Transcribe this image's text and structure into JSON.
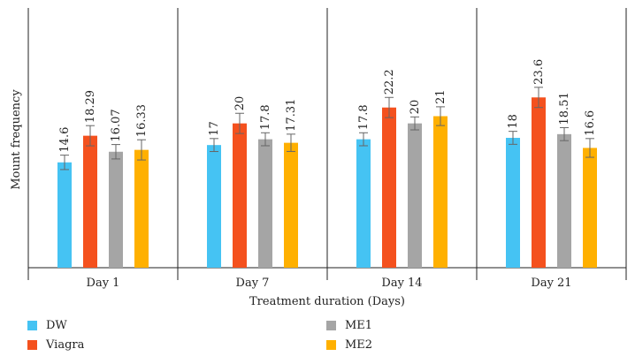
{
  "chart_data": {
    "type": "bar",
    "title": "",
    "xlabel": "Treatment duration (Days)",
    "ylabel": "Mount frequency",
    "ylim": [
      0,
      36
    ],
    "grid": false,
    "legend_position": "bottom",
    "categories": [
      "Day 1",
      "Day 7",
      "Day 14",
      "Day 21"
    ],
    "series": [
      {
        "name": "DW",
        "color": "#45c3f3",
        "values": [
          14.6,
          17,
          17.8,
          18
        ],
        "labels": [
          "14.6",
          "17",
          "17.8",
          "18"
        ],
        "errors": [
          1.0,
          0.9,
          0.9,
          0.9
        ]
      },
      {
        "name": "Viagra",
        "color": "#f4511e",
        "values": [
          18.29,
          20,
          22.2,
          23.6
        ],
        "labels": [
          "18.29",
          "20",
          "22.2",
          "23.6"
        ],
        "errors": [
          1.4,
          1.4,
          1.4,
          1.4
        ]
      },
      {
        "name": "ME1",
        "color": "#a5a5a5",
        "values": [
          16.07,
          17.8,
          20,
          18.51
        ],
        "labels": [
          "16.07",
          "17.8",
          "20",
          "18.51"
        ],
        "errors": [
          1.0,
          0.9,
          0.9,
          0.9
        ]
      },
      {
        "name": "ME2",
        "color": "#ffb000",
        "values": [
          16.33,
          17.31,
          21,
          16.6
        ],
        "labels": [
          "16.33",
          "17.31",
          "21",
          "16.6"
        ],
        "errors": [
          1.4,
          1.2,
          1.3,
          1.3
        ]
      }
    ]
  }
}
